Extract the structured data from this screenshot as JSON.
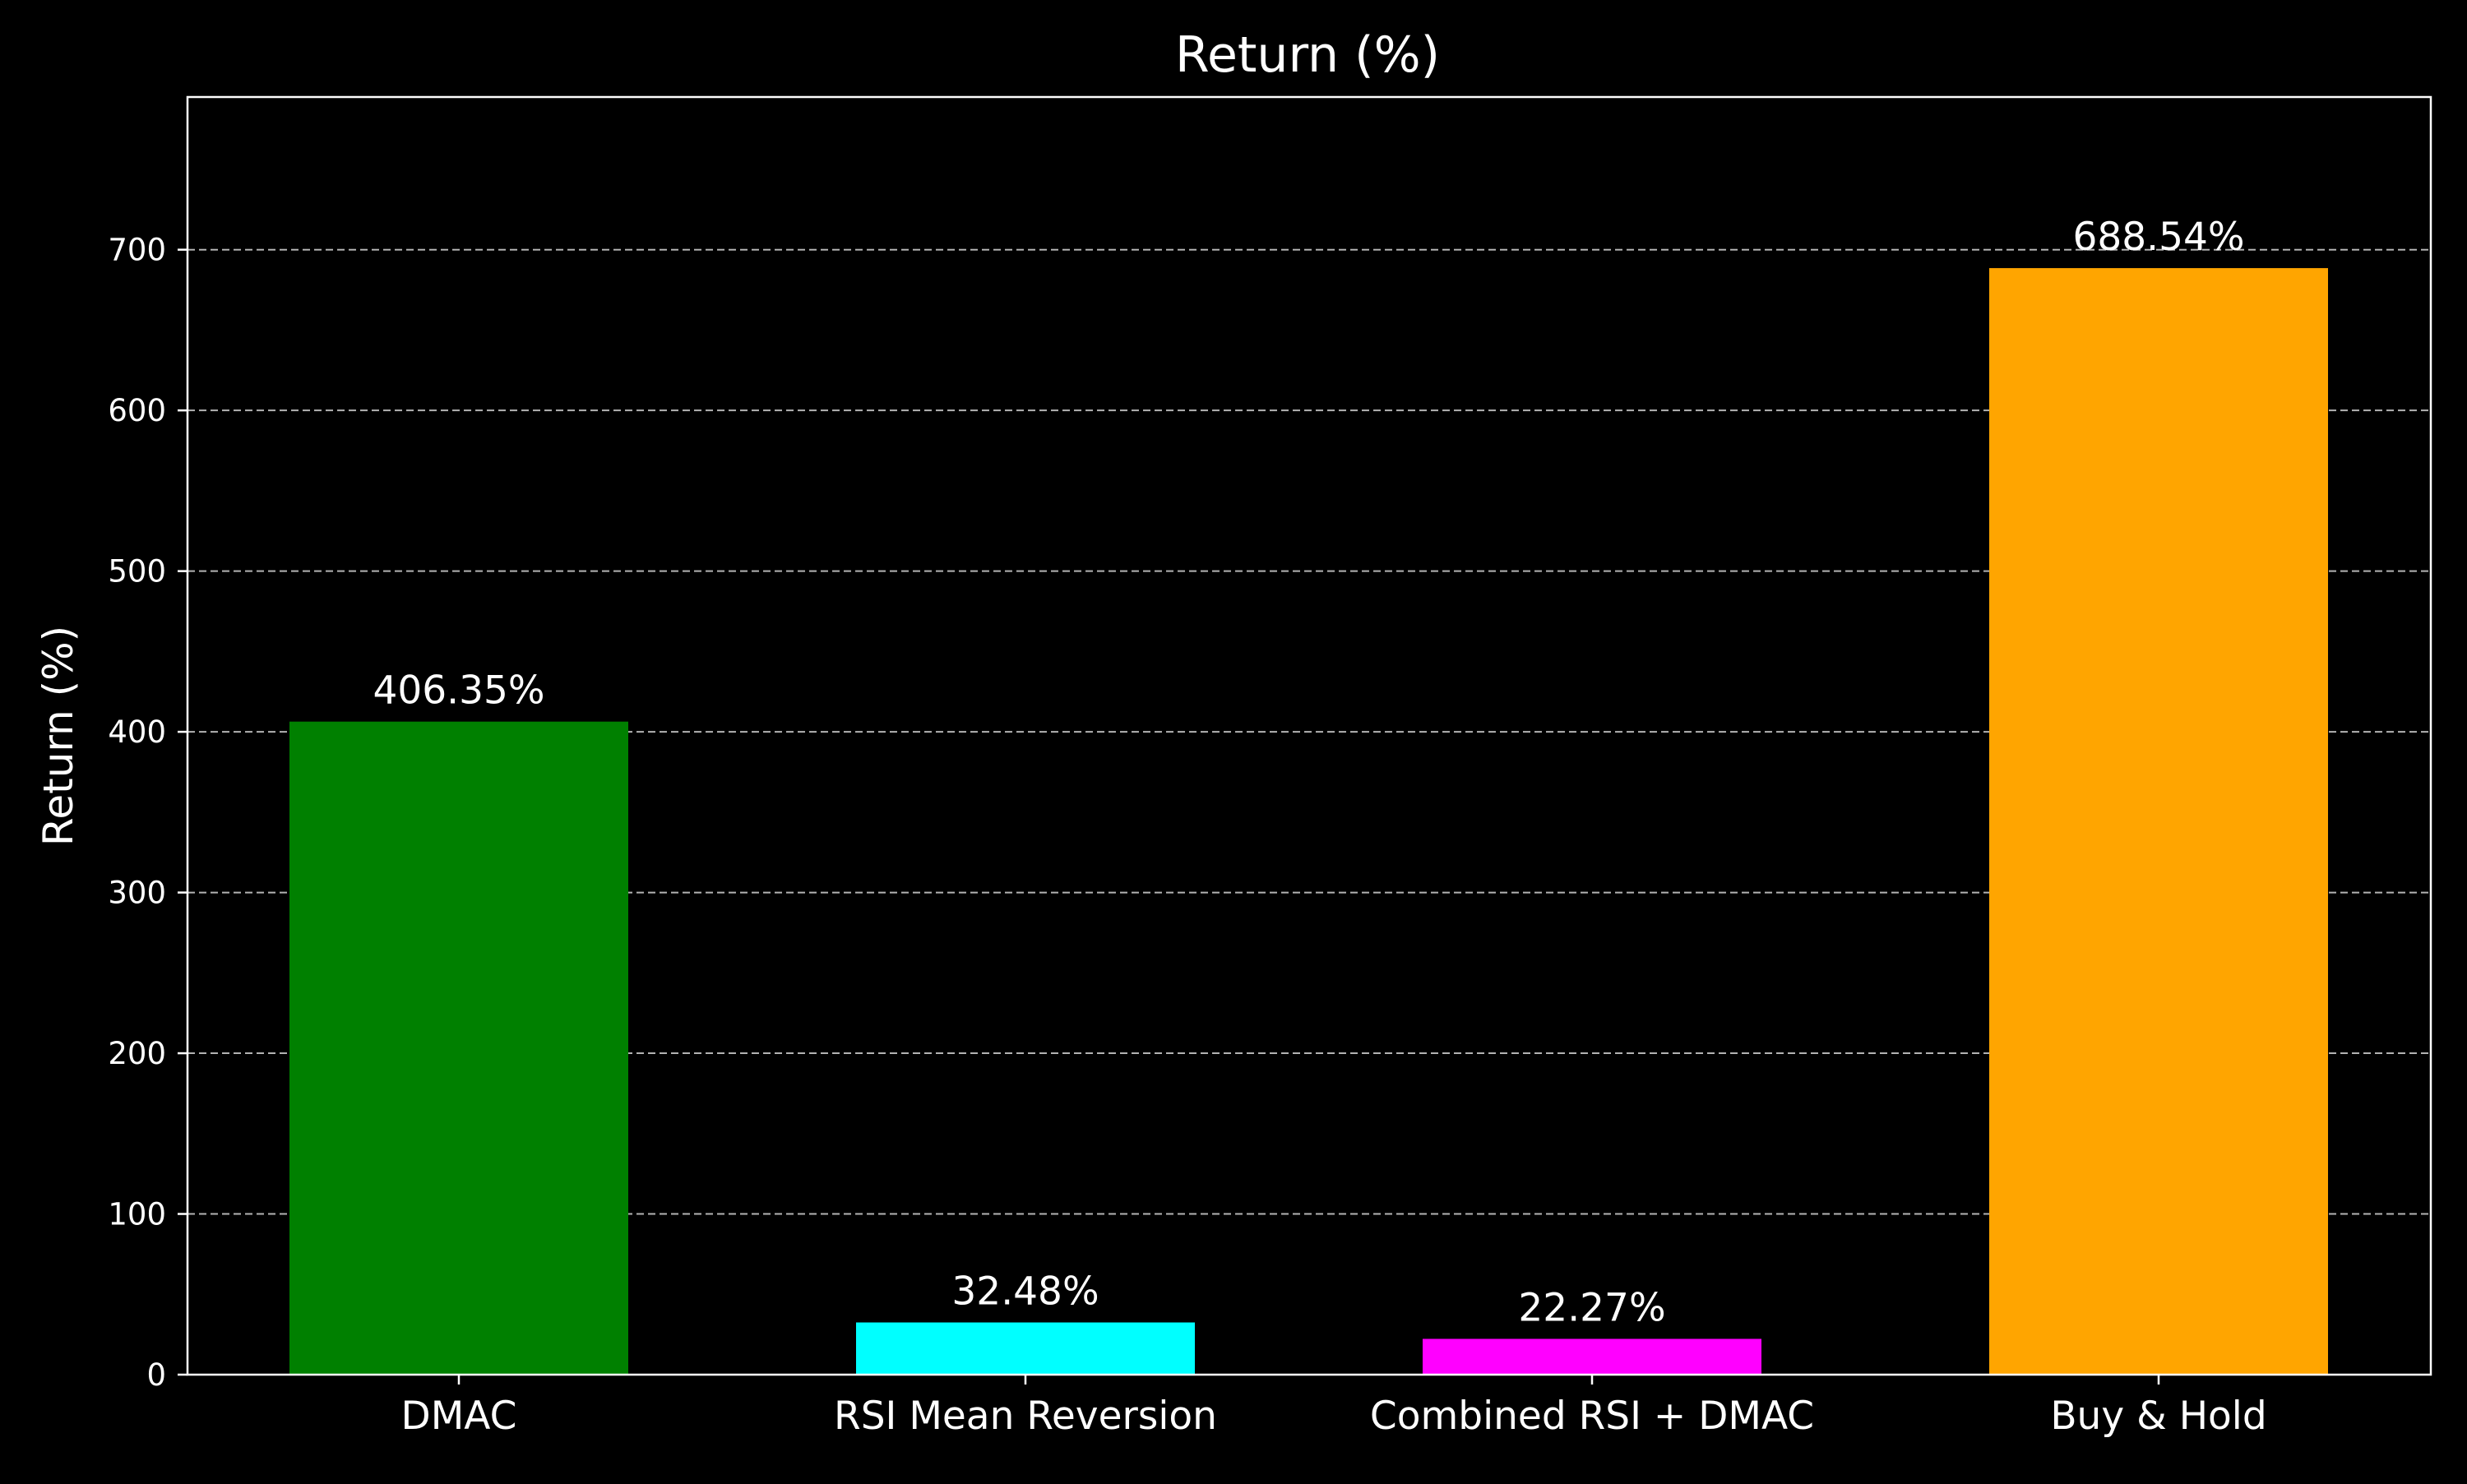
{
  "chart_data": {
    "type": "bar",
    "title": "Return (%)",
    "xlabel": "",
    "ylabel": "Return (%)",
    "categories": [
      "DMAC",
      "RSI Mean Reversion",
      "Combined RSI + DMAC",
      "Buy & Hold"
    ],
    "values": [
      406.35,
      32.48,
      22.27,
      688.54
    ],
    "value_labels": [
      "406.35%",
      "32.48%",
      "22.27%",
      "688.54%"
    ],
    "colors": [
      "#008000",
      "#00ffff",
      "#ff00ff",
      "#ffa500"
    ],
    "ylim": [
      0,
      795
    ],
    "yticks": [
      0,
      100,
      200,
      300,
      400,
      500,
      600,
      700
    ],
    "grid": "horizontal dashed",
    "background": "#000000",
    "foreground": "#ffffff",
    "grid_color": "#b3b3b3"
  }
}
